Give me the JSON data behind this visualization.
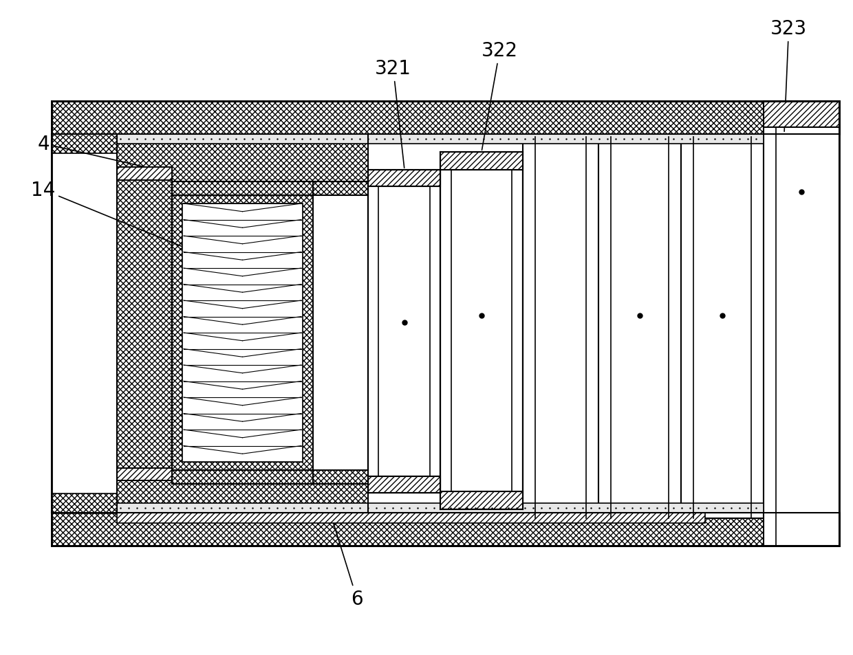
{
  "bg_color": "#ffffff",
  "line_color": "#000000",
  "figsize": [
    12.4,
    9.54
  ],
  "dpi": 100
}
